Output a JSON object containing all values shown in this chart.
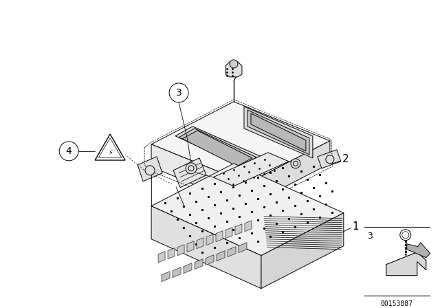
{
  "background_color": "#ffffff",
  "line_color": "#000000",
  "image_number": "00153887",
  "lw": 0.7
}
